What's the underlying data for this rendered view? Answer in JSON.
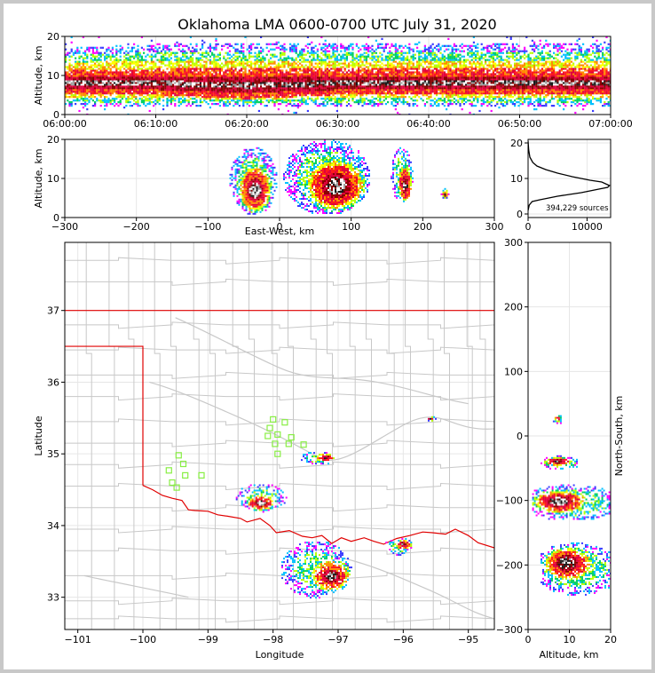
{
  "chart_data": [
    {
      "type": "heatmap",
      "title": "Oklahoma LMA 0600-0700 UTC July 31, 2020",
      "panel": "time-altitude",
      "xlabel": "",
      "ylabel": "Altitude, km",
      "x_ticks": [
        "06:00:00",
        "06:10:00",
        "06:20:00",
        "06:30:00",
        "06:40:00",
        "06:50:00",
        "07:00:00"
      ],
      "y_ticks": [
        "0",
        "10",
        "20"
      ],
      "xlim": [
        "06:00:00",
        "07:00:00"
      ],
      "ylim": [
        0,
        20
      ],
      "series": [
        {
          "values": [
            {
              "x": "06:00:00",
              "lo": 2,
              "core_lo": 5,
              "core_hi": 11,
              "hi": 17
            },
            {
              "x": "06:10:00",
              "lo": 2,
              "core_lo": 5,
              "core_hi": 11,
              "hi": 18
            },
            {
              "x": "06:20:00",
              "lo": 2,
              "core_lo": 4,
              "core_hi": 11,
              "hi": 18
            },
            {
              "x": "06:30:00",
              "lo": 2,
              "core_lo": 5,
              "core_hi": 11,
              "hi": 18
            },
            {
              "x": "06:40:00",
              "lo": 2,
              "core_lo": 5,
              "core_hi": 11,
              "hi": 18
            },
            {
              "x": "06:50:00",
              "lo": 2,
              "core_lo": 5,
              "core_hi": 11,
              "hi": 18
            },
            {
              "x": "07:00:00",
              "lo": 2,
              "core_lo": 5,
              "core_hi": 11,
              "hi": 18
            }
          ]
        }
      ]
    },
    {
      "type": "heatmap",
      "panel": "east-west vs altitude",
      "xlabel": "East-West, km",
      "ylabel": "Altitude, km",
      "x_ticks": [
        "−300",
        "−200",
        "−100",
        "0",
        "100",
        "200",
        "300"
      ],
      "y_ticks": [
        "0",
        "10",
        "20"
      ],
      "xlim": [
        -300,
        300
      ],
      "ylim": [
        0,
        20
      ],
      "clusters": [
        {
          "x_min": -70,
          "x_max": -5,
          "z_min": 1,
          "z_max": 18,
          "x_peak": -35,
          "z_peak": 7
        },
        {
          "x_min": 5,
          "x_max": 125,
          "z_min": 1,
          "z_max": 20,
          "x_peak": 80,
          "z_peak": 8
        },
        {
          "x_min": 155,
          "x_max": 185,
          "z_min": 4,
          "z_max": 18,
          "x_peak": 175,
          "z_peak": 8
        },
        {
          "x_min": 225,
          "x_max": 235,
          "z_min": 5,
          "z_max": 8,
          "x_peak": 230,
          "z_peak": 6
        }
      ]
    },
    {
      "type": "line",
      "panel": "altitude histogram",
      "x_ticks": [
        "0",
        "10000"
      ],
      "y_ticks": [
        "0",
        "10",
        "20"
      ],
      "xlim": [
        0,
        14000
      ],
      "ylim": [
        -1,
        21
      ],
      "annotation": "394,229 sources",
      "x": [
        0,
        100,
        300,
        800,
        1500,
        3000,
        5000,
        7500,
        9000,
        10500,
        12500,
        13800,
        13500,
        12000,
        10500,
        9000,
        7000,
        5000,
        3500,
        2000,
        700,
        200,
        0
      ],
      "y": [
        20.5,
        18,
        16,
        14.5,
        13.5,
        12.5,
        11.5,
        10.5,
        10,
        9.5,
        9,
        8,
        7.5,
        7,
        6.5,
        6,
        5.5,
        5,
        4.5,
        4,
        3.5,
        2.5,
        1
      ]
    },
    {
      "type": "heatmap",
      "panel": "plan view",
      "xlabel": "Longitude",
      "ylabel": "Latitude",
      "x_ticks": [
        "−101",
        "−100",
        "−99",
        "−98",
        "−97",
        "−96",
        "−95"
      ],
      "y_ticks": [
        "33",
        "34",
        "35",
        "36",
        "37"
      ],
      "xlim": [
        -101.2,
        -94.6
      ],
      "ylim": [
        32.55,
        37.95
      ],
      "stations": [
        {
          "lon": -99.45,
          "lat": 34.98
        },
        {
          "lon": -99.38,
          "lat": 34.86
        },
        {
          "lon": -99.6,
          "lat": 34.77
        },
        {
          "lon": -99.35,
          "lat": 34.7
        },
        {
          "lon": -99.55,
          "lat": 34.6
        },
        {
          "lon": -99.48,
          "lat": 34.53
        },
        {
          "lon": -99.1,
          "lat": 34.7
        },
        {
          "lon": -98.0,
          "lat": 35.48
        },
        {
          "lon": -98.05,
          "lat": 35.36
        },
        {
          "lon": -97.82,
          "lat": 35.44
        },
        {
          "lon": -98.08,
          "lat": 35.25
        },
        {
          "lon": -97.93,
          "lat": 35.27
        },
        {
          "lon": -97.72,
          "lat": 35.23
        },
        {
          "lon": -97.97,
          "lat": 35.14
        },
        {
          "lon": -97.76,
          "lat": 35.14
        },
        {
          "lon": -97.53,
          "lat": 35.13
        },
        {
          "lon": -97.93,
          "lat": 35.0
        }
      ],
      "clusters": [
        {
          "lon_min": -98.6,
          "lon_max": -97.8,
          "lat_min": 34.2,
          "lat_max": 34.6,
          "lon_peak": -98.2,
          "lat_peak": 34.32
        },
        {
          "lon_min": -97.6,
          "lon_max": -97.05,
          "lat_min": 34.85,
          "lat_max": 35.05,
          "lon_peak": -97.2,
          "lat_peak": 34.96
        },
        {
          "lon_min": -97.9,
          "lon_max": -96.8,
          "lat_min": 33.0,
          "lat_max": 33.8,
          "lon_peak": -97.1,
          "lat_peak": 33.3
        },
        {
          "lon_min": -96.3,
          "lon_max": -95.85,
          "lat_min": 33.6,
          "lat_max": 33.85,
          "lon_peak": -96.0,
          "lat_peak": 33.75
        },
        {
          "lon_min": -95.65,
          "lon_max": -95.5,
          "lat_min": 35.45,
          "lat_max": 35.55,
          "lon_peak": -95.6,
          "lat_peak": 35.5
        }
      ]
    },
    {
      "type": "heatmap",
      "panel": "altitude vs north-south",
      "xlabel": "Altitude, km",
      "ylabel": "North-South, km",
      "x_ticks": [
        "0",
        "10",
        "20"
      ],
      "y_ticks": [
        "300",
        "200",
        "100",
        "0",
        "−100",
        "−200",
        "−300"
      ],
      "xlim": [
        0,
        20
      ],
      "ylim": [
        -300,
        300
      ],
      "clusters": [
        {
          "z_min": 3,
          "z_max": 20,
          "ns_min": -245,
          "ns_max": -165,
          "z_peak": 9,
          "ns_peak": -195
        },
        {
          "z_min": 1,
          "z_max": 20,
          "ns_min": -130,
          "ns_max": -75,
          "z_peak": 7,
          "ns_peak": -100
        },
        {
          "z_min": 3,
          "z_max": 12,
          "ns_min": -50,
          "ns_max": -30,
          "z_peak": 7,
          "ns_peak": -38
        },
        {
          "z_min": 6,
          "z_max": 8,
          "ns_min": 20,
          "ns_max": 35,
          "z_peak": 7,
          "ns_peak": 28
        }
      ]
    }
  ]
}
